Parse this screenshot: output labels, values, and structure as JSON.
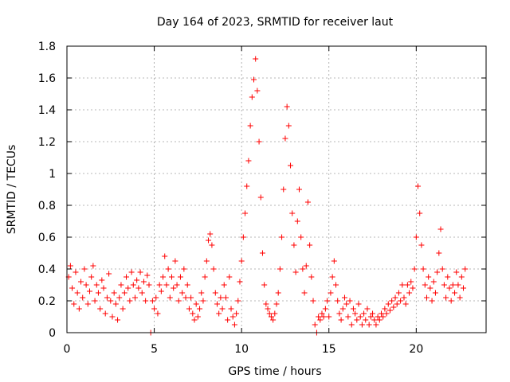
{
  "chart_data": {
    "type": "scatter",
    "title": "Day 164 of 2023, SRMTID for receiver laut",
    "xlabel": "GPS time / hours",
    "ylabel": "SRMTID / TECUs",
    "xlim": [
      0,
      24
    ],
    "ylim": [
      0,
      1.8
    ],
    "x_ticks": [
      0,
      5,
      10,
      15,
      20
    ],
    "y_ticks": [
      0,
      0.2,
      0.4,
      0.6,
      0.8,
      1,
      1.2,
      1.4,
      1.6,
      1.8
    ],
    "x_tick_labels": [
      "0",
      "5",
      "10",
      "15",
      "20"
    ],
    "y_tick_labels": [
      "0",
      "0.2",
      "0.4",
      "0.6",
      "0.8",
      "1",
      "1.2",
      "1.4",
      "1.6",
      "1.8"
    ],
    "grid": true,
    "marker": "plus",
    "color": "#ff0000",
    "series": [
      {
        "name": "SRMTID",
        "points": [
          [
            0.1,
            0.35
          ],
          [
            0.2,
            0.42
          ],
          [
            0.3,
            0.28
          ],
          [
            0.4,
            0.18
          ],
          [
            0.5,
            0.38
          ],
          [
            0.6,
            0.25
          ],
          [
            0.7,
            0.15
          ],
          [
            0.8,
            0.32
          ],
          [
            0.9,
            0.22
          ],
          [
            1.0,
            0.4
          ],
          [
            1.1,
            0.3
          ],
          [
            1.2,
            0.18
          ],
          [
            1.3,
            0.26
          ],
          [
            1.4,
            0.35
          ],
          [
            1.5,
            0.42
          ],
          [
            1.6,
            0.2
          ],
          [
            1.7,
            0.3
          ],
          [
            1.8,
            0.25
          ],
          [
            1.9,
            0.15
          ],
          [
            2.0,
            0.33
          ],
          [
            2.1,
            0.28
          ],
          [
            2.2,
            0.12
          ],
          [
            2.3,
            0.22
          ],
          [
            2.4,
            0.37
          ],
          [
            2.5,
            0.2
          ],
          [
            2.6,
            0.1
          ],
          [
            2.7,
            0.25
          ],
          [
            2.8,
            0.18
          ],
          [
            2.9,
            0.08
          ],
          [
            3.0,
            0.22
          ],
          [
            3.1,
            0.3
          ],
          [
            3.2,
            0.15
          ],
          [
            3.3,
            0.25
          ],
          [
            3.4,
            0.35
          ],
          [
            3.5,
            0.28
          ],
          [
            3.6,
            0.2
          ],
          [
            3.7,
            0.38
          ],
          [
            3.8,
            0.3
          ],
          [
            3.9,
            0.22
          ],
          [
            4.0,
            0.33
          ],
          [
            4.1,
            0.28
          ],
          [
            4.2,
            0.38
          ],
          [
            4.3,
            0.25
          ],
          [
            4.4,
            0.32
          ],
          [
            4.5,
            0.2
          ],
          [
            4.6,
            0.36
          ],
          [
            4.7,
            0.3
          ],
          [
            4.8,
            0.0
          ],
          [
            4.9,
            0.2
          ],
          [
            5.0,
            0.15
          ],
          [
            5.1,
            0.22
          ],
          [
            5.2,
            0.12
          ],
          [
            5.3,
            0.3
          ],
          [
            5.4,
            0.26
          ],
          [
            5.5,
            0.35
          ],
          [
            5.6,
            0.48
          ],
          [
            5.7,
            0.3
          ],
          [
            5.8,
            0.4
          ],
          [
            5.9,
            0.22
          ],
          [
            6.0,
            0.35
          ],
          [
            6.1,
            0.28
          ],
          [
            6.2,
            0.45
          ],
          [
            6.3,
            0.3
          ],
          [
            6.4,
            0.2
          ],
          [
            6.5,
            0.35
          ],
          [
            6.6,
            0.25
          ],
          [
            6.7,
            0.4
          ],
          [
            6.8,
            0.22
          ],
          [
            6.9,
            0.3
          ],
          [
            7.0,
            0.15
          ],
          [
            7.1,
            0.22
          ],
          [
            7.2,
            0.12
          ],
          [
            7.3,
            0.08
          ],
          [
            7.4,
            0.18
          ],
          [
            7.5,
            0.1
          ],
          [
            7.6,
            0.15
          ],
          [
            7.7,
            0.25
          ],
          [
            7.8,
            0.2
          ],
          [
            7.9,
            0.35
          ],
          [
            8.0,
            0.45
          ],
          [
            8.1,
            0.58
          ],
          [
            8.2,
            0.62
          ],
          [
            8.3,
            0.55
          ],
          [
            8.4,
            0.4
          ],
          [
            8.5,
            0.25
          ],
          [
            8.6,
            0.18
          ],
          [
            8.7,
            0.12
          ],
          [
            8.8,
            0.22
          ],
          [
            8.9,
            0.15
          ],
          [
            9.0,
            0.3
          ],
          [
            9.1,
            0.22
          ],
          [
            9.2,
            0.08
          ],
          [
            9.3,
            0.35
          ],
          [
            9.4,
            0.15
          ],
          [
            9.5,
            0.1
          ],
          [
            9.6,
            0.05
          ],
          [
            9.7,
            0.12
          ],
          [
            9.8,
            0.2
          ],
          [
            9.9,
            0.32
          ],
          [
            10.0,
            0.45
          ],
          [
            10.1,
            0.6
          ],
          [
            10.2,
            0.75
          ],
          [
            10.3,
            0.92
          ],
          [
            10.4,
            1.08
          ],
          [
            10.5,
            1.3
          ],
          [
            10.6,
            1.48
          ],
          [
            10.7,
            1.59
          ],
          [
            10.8,
            1.72
          ],
          [
            10.9,
            1.52
          ],
          [
            11.0,
            1.2
          ],
          [
            11.1,
            0.85
          ],
          [
            11.2,
            0.5
          ],
          [
            11.3,
            0.3
          ],
          [
            11.4,
            0.18
          ],
          [
            11.5,
            0.15
          ],
          [
            11.6,
            0.12
          ],
          [
            11.7,
            0.1
          ],
          [
            11.8,
            0.08
          ],
          [
            11.9,
            0.12
          ],
          [
            12.0,
            0.18
          ],
          [
            12.1,
            0.25
          ],
          [
            12.2,
            0.4
          ],
          [
            12.3,
            0.6
          ],
          [
            12.4,
            0.9
          ],
          [
            12.5,
            1.22
          ],
          [
            12.6,
            1.42
          ],
          [
            12.7,
            1.3
          ],
          [
            12.8,
            1.05
          ],
          [
            12.9,
            0.75
          ],
          [
            13.0,
            0.55
          ],
          [
            13.1,
            0.38
          ],
          [
            13.2,
            0.7
          ],
          [
            13.3,
            0.9
          ],
          [
            13.4,
            0.6
          ],
          [
            13.5,
            0.4
          ],
          [
            13.6,
            0.25
          ],
          [
            13.7,
            0.42
          ],
          [
            13.8,
            0.82
          ],
          [
            13.9,
            0.55
          ],
          [
            14.0,
            0.35
          ],
          [
            14.1,
            0.2
          ],
          [
            14.2,
            0.05
          ],
          [
            14.3,
            0.0
          ],
          [
            14.4,
            0.1
          ],
          [
            14.5,
            0.08
          ],
          [
            14.6,
            0.12
          ],
          [
            14.7,
            0.1
          ],
          [
            14.8,
            0.15
          ],
          [
            14.9,
            0.2
          ],
          [
            15.0,
            0.1
          ],
          [
            15.1,
            0.25
          ],
          [
            15.2,
            0.35
          ],
          [
            15.3,
            0.45
          ],
          [
            15.4,
            0.3
          ],
          [
            15.5,
            0.2
          ],
          [
            15.6,
            0.12
          ],
          [
            15.7,
            0.08
          ],
          [
            15.8,
            0.15
          ],
          [
            15.9,
            0.22
          ],
          [
            16.0,
            0.18
          ],
          [
            16.1,
            0.1
          ],
          [
            16.2,
            0.2
          ],
          [
            16.3,
            0.05
          ],
          [
            16.4,
            0.15
          ],
          [
            16.5,
            0.12
          ],
          [
            16.6,
            0.08
          ],
          [
            16.7,
            0.18
          ],
          [
            16.8,
            0.1
          ],
          [
            16.9,
            0.05
          ],
          [
            17.0,
            0.12
          ],
          [
            17.1,
            0.08
          ],
          [
            17.2,
            0.15
          ],
          [
            17.3,
            0.05
          ],
          [
            17.4,
            0.1
          ],
          [
            17.5,
            0.12
          ],
          [
            17.6,
            0.08
          ],
          [
            17.7,
            0.05
          ],
          [
            17.8,
            0.1
          ],
          [
            17.9,
            0.08
          ],
          [
            18.0,
            0.12
          ],
          [
            18.1,
            0.1
          ],
          [
            18.2,
            0.15
          ],
          [
            18.3,
            0.12
          ],
          [
            18.4,
            0.18
          ],
          [
            18.5,
            0.14
          ],
          [
            18.6,
            0.2
          ],
          [
            18.7,
            0.16
          ],
          [
            18.8,
            0.22
          ],
          [
            18.9,
            0.18
          ],
          [
            19.0,
            0.25
          ],
          [
            19.1,
            0.2
          ],
          [
            19.2,
            0.3
          ],
          [
            19.3,
            0.22
          ],
          [
            19.4,
            0.18
          ],
          [
            19.5,
            0.3
          ],
          [
            19.6,
            0.25
          ],
          [
            19.7,
            0.32
          ],
          [
            19.8,
            0.28
          ],
          [
            19.9,
            0.4
          ],
          [
            20.0,
            0.6
          ],
          [
            20.1,
            0.92
          ],
          [
            20.2,
            0.75
          ],
          [
            20.3,
            0.55
          ],
          [
            20.4,
            0.4
          ],
          [
            20.5,
            0.3
          ],
          [
            20.6,
            0.22
          ],
          [
            20.7,
            0.35
          ],
          [
            20.8,
            0.28
          ],
          [
            20.9,
            0.2
          ],
          [
            21.0,
            0.32
          ],
          [
            21.1,
            0.25
          ],
          [
            21.2,
            0.38
          ],
          [
            21.3,
            0.5
          ],
          [
            21.4,
            0.65
          ],
          [
            21.5,
            0.4
          ],
          [
            21.6,
            0.3
          ],
          [
            21.7,
            0.22
          ],
          [
            21.8,
            0.35
          ],
          [
            21.9,
            0.28
          ],
          [
            22.0,
            0.2
          ],
          [
            22.1,
            0.3
          ],
          [
            22.2,
            0.25
          ],
          [
            22.3,
            0.38
          ],
          [
            22.4,
            0.3
          ],
          [
            22.5,
            0.22
          ],
          [
            22.6,
            0.35
          ],
          [
            22.7,
            0.28
          ],
          [
            22.8,
            0.4
          ]
        ]
      }
    ]
  }
}
